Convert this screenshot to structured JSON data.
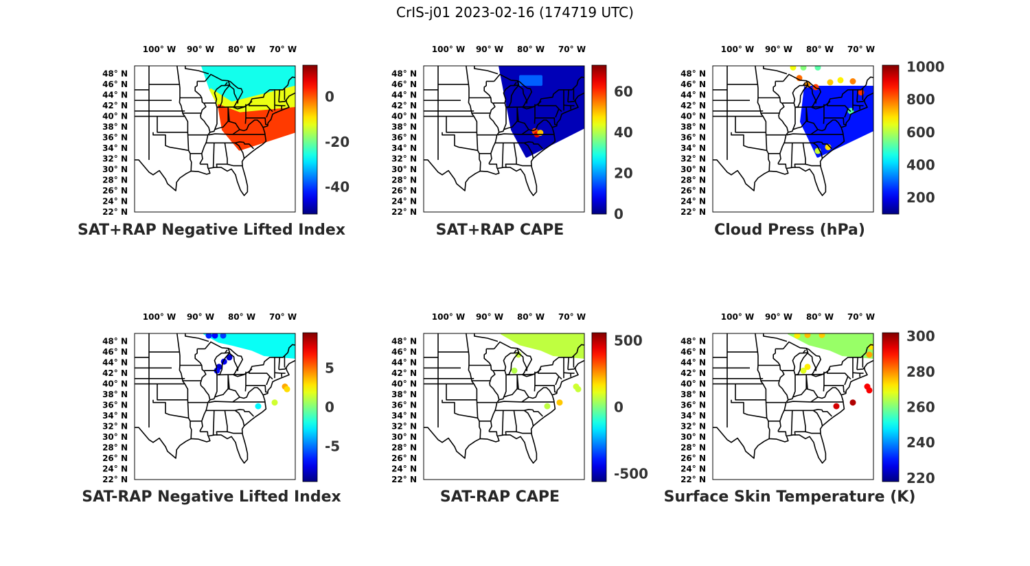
{
  "title": "CrIS-j01 2023-02-16 (174719 UTC)",
  "map_axes": {
    "lon_ticks": [
      "100° W",
      "90° W",
      "80° W",
      "70° W"
    ],
    "lon_values": [
      -100,
      -90,
      -80,
      -70
    ],
    "lat_ticks": [
      "48° N",
      "46° N",
      "44° N",
      "42° N",
      "40° N",
      "38° N",
      "36° N",
      "34° N",
      "32° N",
      "30° N",
      "28° N",
      "26° N",
      "24° N",
      "22° N"
    ],
    "lat_values": [
      48,
      46,
      44,
      42,
      40,
      38,
      36,
      34,
      32,
      30,
      28,
      26,
      24,
      22
    ],
    "lon_range": [
      -107.5,
      -68.5
    ],
    "lat_range": [
      22,
      49.5
    ]
  },
  "colormap": "jet",
  "chart_data": [
    {
      "type": "heatmap",
      "title": "SAT+RAP Negative Lifted Index",
      "colorbar_ticks": [
        "0",
        "-20",
        "-40"
      ],
      "colorbar_tick_values": [
        0,
        -20,
        -40
      ],
      "clim": [
        -52,
        14
      ],
      "swath": [
        [
          -91,
          49.5
        ],
        [
          -68.5,
          49.5
        ],
        [
          -68.5,
          37.2
        ],
        [
          -82,
          33.8
        ],
        [
          -86,
          37.5
        ]
      ],
      "regions": [
        {
          "polygon": [
            [
              -91,
              49.5
            ],
            [
              -68.5,
              49.5
            ],
            [
              -68.5,
              45.5
            ],
            [
              -84,
              42.5
            ],
            [
              -89,
              45
            ]
          ],
          "value": -26
        },
        {
          "polygon": [
            [
              -89,
              45
            ],
            [
              -84,
              42.5
            ],
            [
              -68.5,
              45.5
            ],
            [
              -68.5,
              41.5
            ],
            [
              -82,
              40.5
            ],
            [
              -87,
              42
            ]
          ],
          "value": -12
        },
        {
          "polygon": [
            [
              -87,
              42
            ],
            [
              -82,
              40.5
            ],
            [
              -68.5,
              41.5
            ],
            [
              -68.5,
              37.2
            ],
            [
              -82,
              33.8
            ],
            [
              -86,
              37.5
            ]
          ],
          "value": 2
        }
      ],
      "points": []
    },
    {
      "type": "heatmap",
      "title": "SAT+RAP CAPE",
      "colorbar_ticks": [
        "60",
        "40",
        "20",
        "0"
      ],
      "colorbar_tick_values": [
        60,
        40,
        20,
        0
      ],
      "clim": [
        0,
        73
      ],
      "swath": [
        [
          -89,
          49.5
        ],
        [
          -68.5,
          49.5
        ],
        [
          -68.5,
          38
        ],
        [
          -82.5,
          32.5
        ],
        [
          -86,
          37.5
        ]
      ],
      "regions": [
        {
          "polygon": [
            [
              -89,
              49.5
            ],
            [
              -68.5,
              49.5
            ],
            [
              -68.5,
              38
            ],
            [
              -82.5,
              32.5
            ],
            [
              -86,
              37.5
            ]
          ],
          "value": 4
        },
        {
          "polygon": [
            [
              -84,
              47.5
            ],
            [
              -79,
              47.5
            ],
            [
              -79,
              46
            ],
            [
              -84,
              46
            ]
          ],
          "value": 16
        }
      ],
      "points": [
        {
          "lon": -80.5,
          "lat": 37.2,
          "value": 58
        },
        {
          "lon": -80,
          "lat": 36.6,
          "value": 66
        },
        {
          "lon": -79.2,
          "lat": 36.9,
          "value": 50
        }
      ]
    },
    {
      "type": "heatmap",
      "title": "Cloud Press (hPa)",
      "colorbar_ticks": [
        "1000",
        "800",
        "600",
        "400",
        "200"
      ],
      "colorbar_tick_values": [
        1000,
        800,
        600,
        400,
        200
      ],
      "clim": [
        100,
        1010
      ],
      "swath": [
        [
          -85,
          45.5
        ],
        [
          -68.5,
          45.5
        ],
        [
          -68.5,
          37.5
        ],
        [
          -82,
          32.5
        ],
        [
          -86,
          39
        ]
      ],
      "regions": [
        {
          "polygon": [
            [
              -85,
              45.5
            ],
            [
              -68.5,
              45.5
            ],
            [
              -68.5,
              37.5
            ],
            [
              -82,
              32.5
            ],
            [
              -86,
              39
            ]
          ],
          "value": 230
        }
      ],
      "points": [
        {
          "lon": -88,
          "lat": 49.2,
          "value": 660
        },
        {
          "lon": -85.5,
          "lat": 49.2,
          "value": 560
        },
        {
          "lon": -82,
          "lat": 49.2,
          "value": 520
        },
        {
          "lon": -86.5,
          "lat": 47.2,
          "value": 800
        },
        {
          "lon": -84.5,
          "lat": 46,
          "value": 760
        },
        {
          "lon": -82.5,
          "lat": 45.5,
          "value": 840
        },
        {
          "lon": -79,
          "lat": 46.4,
          "value": 720
        },
        {
          "lon": -76.5,
          "lat": 46.8,
          "value": 680
        },
        {
          "lon": -73.5,
          "lat": 46.6,
          "value": 780
        },
        {
          "lon": -71.5,
          "lat": 44.5,
          "value": 850
        },
        {
          "lon": -74,
          "lat": 41,
          "value": 520
        },
        {
          "lon": -79.5,
          "lat": 34.2,
          "value": 700
        },
        {
          "lon": -82,
          "lat": 33.5,
          "value": 620
        }
      ]
    },
    {
      "type": "heatmap",
      "title": "SAT-RAP Negative Lifted Index",
      "colorbar_ticks": [
        "5",
        "0",
        "-5"
      ],
      "colorbar_tick_values": [
        5,
        0,
        -5
      ],
      "clim": [
        -9.5,
        9.5
      ],
      "swath": [],
      "regions": [
        {
          "polygon": [
            [
              -90.5,
              49.5
            ],
            [
              -68.5,
              49.5
            ],
            [
              -68.5,
              45
            ],
            [
              -76,
              45.5
            ],
            [
              -79,
              46.5
            ],
            [
              -84,
              47.5
            ],
            [
              -87,
              48
            ]
          ],
          "value": -2.2
        }
      ],
      "points": [
        {
          "lon": -89.5,
          "lat": 49.1,
          "value": -6.5
        },
        {
          "lon": -88,
          "lat": 49.1,
          "value": -7
        },
        {
          "lon": -86,
          "lat": 49.1,
          "value": -6
        },
        {
          "lon": -84.5,
          "lat": 45,
          "value": -8
        },
        {
          "lon": -85.8,
          "lat": 44.2,
          "value": -7.5
        },
        {
          "lon": -87,
          "lat": 43.2,
          "value": -8
        },
        {
          "lon": -87.5,
          "lat": 42.5,
          "value": -7
        },
        {
          "lon": -71,
          "lat": 39.5,
          "value": 4
        },
        {
          "lon": -70.5,
          "lat": 39,
          "value": 3
        },
        {
          "lon": -73.5,
          "lat": 36.5,
          "value": 1.5
        },
        {
          "lon": -77.5,
          "lat": 35.8,
          "value": -2.5
        }
      ]
    },
    {
      "type": "heatmap",
      "title": "SAT-RAP CAPE",
      "colorbar_ticks": [
        "500",
        "0",
        "-500"
      ],
      "colorbar_tick_values": [
        500,
        0,
        -500
      ],
      "clim": [
        -560,
        560
      ],
      "swath": [],
      "regions": [
        {
          "polygon": [
            [
              -88.5,
              49.5
            ],
            [
              -68.5,
              49.5
            ],
            [
              -68.5,
              45
            ],
            [
              -76,
              45.5
            ],
            [
              -79,
              46.5
            ],
            [
              -84,
              47.5
            ]
          ],
          "value": 70
        }
      ],
      "points": [
        {
          "lon": -84.5,
          "lat": 45.5,
          "value": 80
        },
        {
          "lon": -85.5,
          "lat": 42.5,
          "value": 60
        },
        {
          "lon": -70.5,
          "lat": 39.5,
          "value": 90
        },
        {
          "lon": -70,
          "lat": 39,
          "value": 80
        },
        {
          "lon": -74.5,
          "lat": 36.5,
          "value": 200
        },
        {
          "lon": -77.5,
          "lat": 35.8,
          "value": 70
        }
      ]
    },
    {
      "type": "heatmap",
      "title": "Surface Skin Temperature (K)",
      "colorbar_ticks": [
        "300",
        "280",
        "260",
        "240",
        "220"
      ],
      "colorbar_tick_values": [
        300,
        280,
        260,
        240,
        220
      ],
      "clim": [
        218,
        302
      ],
      "swath": [],
      "regions": [
        {
          "polygon": [
            [
              -89,
              49.5
            ],
            [
              -68.5,
              49.5
            ],
            [
              -68.5,
              45
            ],
            [
              -76,
              45.5
            ],
            [
              -79,
              46.5
            ],
            [
              -84,
              47.5
            ]
          ],
          "value": 262
        }
      ],
      "points": [
        {
          "lon": -87,
          "lat": 49.1,
          "value": 272
        },
        {
          "lon": -84.5,
          "lat": 49.2,
          "value": 276
        },
        {
          "lon": -81,
          "lat": 49.2,
          "value": 275
        },
        {
          "lon": -85.5,
          "lat": 42.5,
          "value": 268
        },
        {
          "lon": -84.5,
          "lat": 43.2,
          "value": 272
        },
        {
          "lon": -69,
          "lat": 47,
          "value": 272
        },
        {
          "lon": -69.5,
          "lat": 45.5,
          "value": 278
        },
        {
          "lon": -70,
          "lat": 39.5,
          "value": 292
        },
        {
          "lon": -69.5,
          "lat": 38.8,
          "value": 292
        },
        {
          "lon": -73.5,
          "lat": 36.5,
          "value": 298
        },
        {
          "lon": -77.5,
          "lat": 35.8,
          "value": 295
        }
      ]
    }
  ]
}
